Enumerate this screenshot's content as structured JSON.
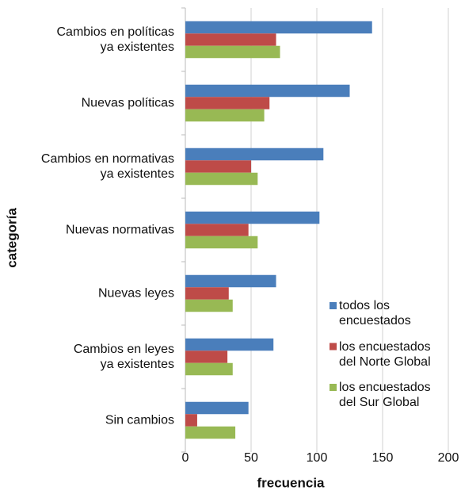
{
  "chart_data": {
    "type": "bar",
    "orientation": "horizontal",
    "xlabel": "frecuencia",
    "ylabel": "categoría",
    "categories": [
      "Cambios en políticas\nya existentes",
      "Nuevas políticas",
      "Cambios en normativas\nya existentes",
      "Nuevas normativas",
      "Nuevas leyes",
      "Cambios en leyes\nya existentes",
      "Sin cambios"
    ],
    "series": [
      {
        "name": "todos los\nencuestados",
        "color": "#4a7ebb",
        "values": [
          142,
          125,
          105,
          102,
          69,
          67,
          48
        ]
      },
      {
        "name": "los encuestados\ndel Norte Global",
        "color": "#be4b48",
        "values": [
          69,
          64,
          50,
          48,
          33,
          32,
          9
        ]
      },
      {
        "name": "los encuestados\ndel Sur Global",
        "color": "#98b954",
        "values": [
          72,
          60,
          55,
          55,
          36,
          36,
          38
        ]
      }
    ],
    "xlim": [
      0,
      200
    ],
    "xticks": [
      0,
      50,
      100,
      150,
      200
    ],
    "grid": true
  }
}
